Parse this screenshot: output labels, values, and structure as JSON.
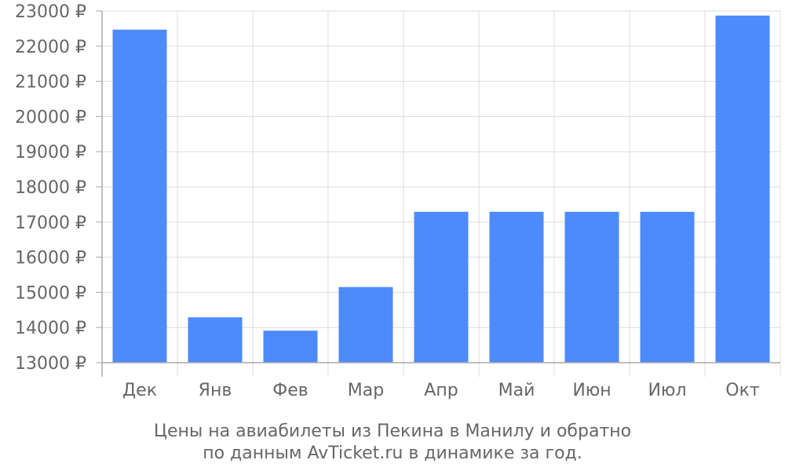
{
  "chart_data": {
    "type": "bar",
    "categories": [
      "Дек",
      "Янв",
      "Фев",
      "Мар",
      "Апр",
      "Май",
      "Июн",
      "Июл",
      "Окт"
    ],
    "values": [
      22470,
      14290,
      13910,
      15150,
      17290,
      17290,
      17290,
      17290,
      22870
    ],
    "ylim": [
      13000,
      23000
    ],
    "yticks": [
      13000,
      14000,
      15000,
      16000,
      17000,
      18000,
      19000,
      20000,
      21000,
      22000,
      23000
    ],
    "currency_suffix": " ₽",
    "bar_color": "#4d8afc",
    "grid": true,
    "caption_lines": [
      "Цены на авиабилеты из Пекина в Манилу и обратно",
      "по данным AvTicket.ru в динамике за год."
    ]
  },
  "colors": {
    "grid": "#dddddd",
    "axis": "#aaaaaa",
    "text": "#666666"
  }
}
